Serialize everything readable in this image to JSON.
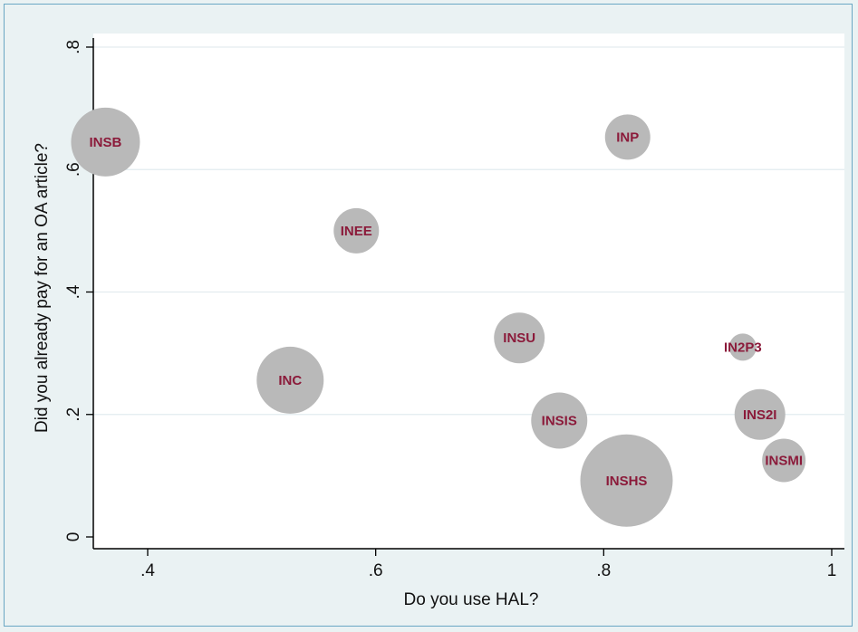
{
  "chart_data": {
    "type": "scatter",
    "xlabel": "Do you use HAL?",
    "ylabel": "Did you already pay for an OA article?",
    "xlim": [
      0.35,
      1.0
    ],
    "ylim": [
      0,
      0.8
    ],
    "xticks": [
      0.4,
      0.6,
      0.8,
      1
    ],
    "xtick_labels": [
      ".4",
      ".6",
      ".8",
      "1"
    ],
    "yticks": [
      0,
      0.2,
      0.4,
      0.6,
      0.8
    ],
    "ytick_labels": [
      "0",
      ".2",
      ".4",
      ".6",
      ".8"
    ],
    "grid": "horizontal",
    "points": [
      {
        "label": "INSB",
        "x": 0.363,
        "y": 0.645,
        "size": 38
      },
      {
        "label": "INP",
        "x": 0.821,
        "y": 0.653,
        "size": 25
      },
      {
        "label": "INEE",
        "x": 0.583,
        "y": 0.5,
        "size": 25
      },
      {
        "label": "INSU",
        "x": 0.726,
        "y": 0.325,
        "size": 28
      },
      {
        "label": "IN2P3",
        "x": 0.922,
        "y": 0.31,
        "size": 15
      },
      {
        "label": "INC",
        "x": 0.525,
        "y": 0.256,
        "size": 37
      },
      {
        "label": "INSIS",
        "x": 0.761,
        "y": 0.19,
        "size": 31
      },
      {
        "label": "INS2I",
        "x": 0.937,
        "y": 0.2,
        "size": 28
      },
      {
        "label": "INSMI",
        "x": 0.958,
        "y": 0.125,
        "size": 24
      },
      {
        "label": "INSHS",
        "x": 0.82,
        "y": 0.092,
        "size": 51
      }
    ]
  },
  "colors": {
    "bubble_fill": "#b9b9b9",
    "label": "#8b1a3a",
    "plot_bg": "#ffffff",
    "outer_bg": "#eaf2f3",
    "grid": "#e3ecef"
  }
}
